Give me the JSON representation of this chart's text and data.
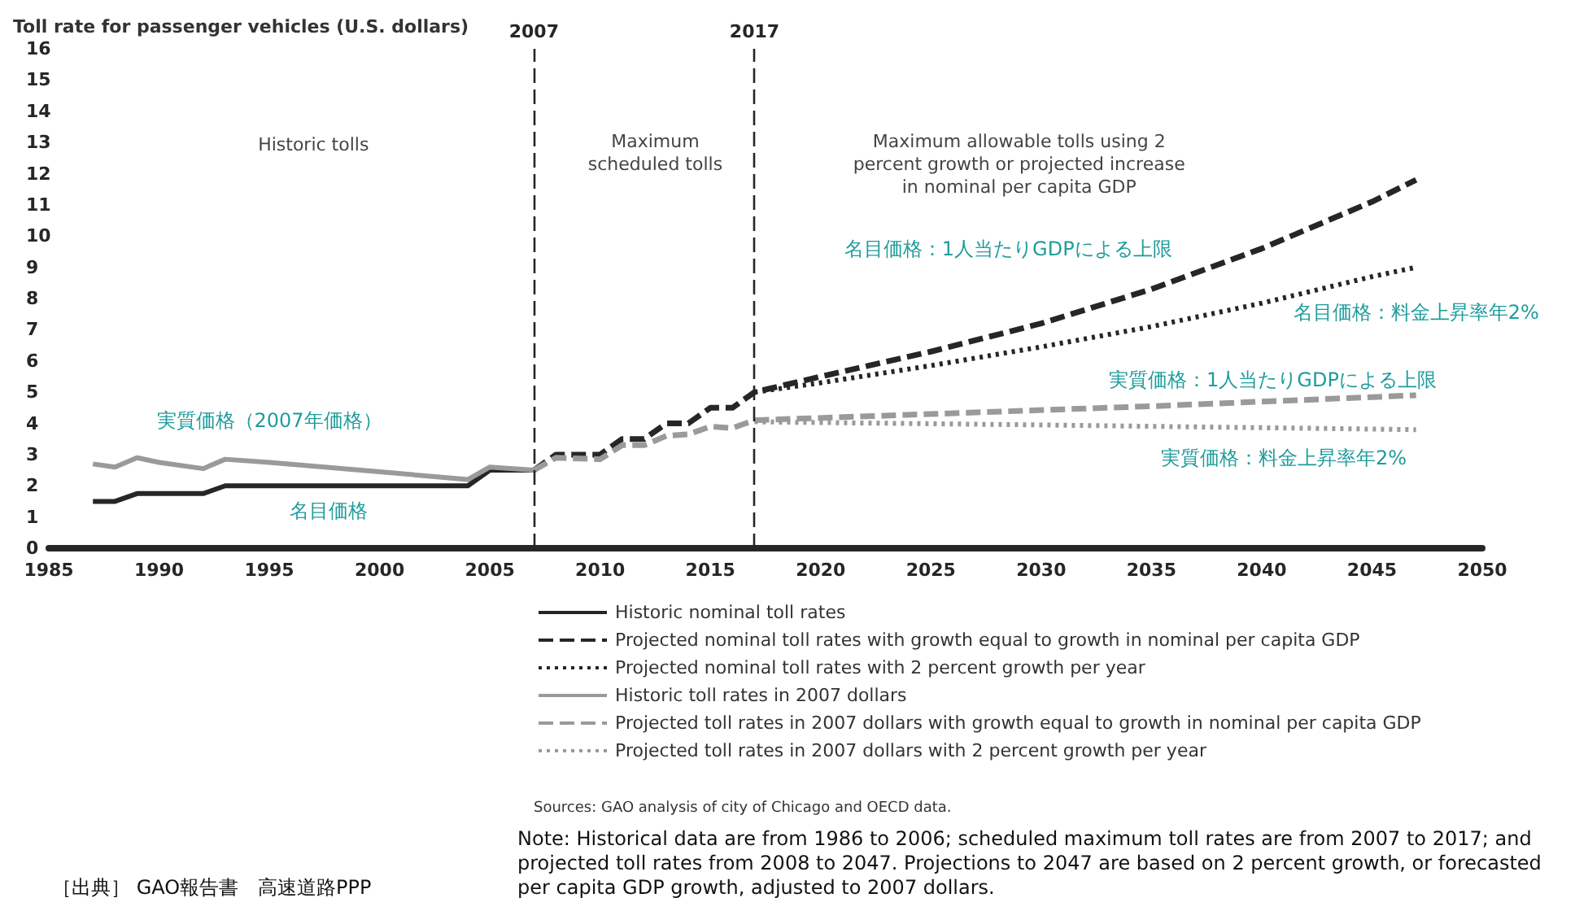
{
  "chart_data": {
    "type": "line",
    "ylabel": "Toll rate for passenger vehicles (U.S. dollars)",
    "xlim": [
      1985,
      2050
    ],
    "xticks": [
      1985,
      1990,
      1995,
      2000,
      2005,
      2010,
      2015,
      2020,
      2025,
      2030,
      2035,
      2040,
      2045,
      2050
    ],
    "ylim": [
      0,
      16
    ],
    "yticks": [
      0,
      1,
      2,
      3,
      4,
      5,
      6,
      7,
      8,
      9,
      10,
      11,
      12,
      13,
      14,
      15,
      16
    ],
    "grid": false,
    "legend": "bottom",
    "marker": "none",
    "series": [
      {
        "name": "Historic nominal toll rates",
        "color": "#262626",
        "line_style": "solid",
        "x": [
          1987,
          1988,
          1989,
          1990,
          1992,
          1993,
          2004,
          2005,
          2007
        ],
        "values": [
          1.5,
          1.5,
          1.75,
          1.75,
          1.75,
          2.0,
          2.0,
          2.5,
          2.5
        ]
      },
      {
        "name": "Projected nominal toll rates with growth equal to growth in nominal per capita GDP",
        "color": "#262626",
        "line_style": "dashed",
        "x": [
          2007,
          2008,
          2010,
          2011,
          2012,
          2013,
          2014,
          2015,
          2016,
          2017,
          2020,
          2025,
          2030,
          2035,
          2040,
          2045,
          2047
        ],
        "values": [
          2.5,
          3.0,
          3.0,
          3.5,
          3.5,
          4.0,
          4.0,
          4.5,
          4.5,
          5.0,
          5.5,
          6.3,
          7.2,
          8.3,
          9.6,
          11.1,
          11.8
        ]
      },
      {
        "name": "Projected nominal toll rates with 2 percent growth per year",
        "color": "#262626",
        "line_style": "dotted",
        "x": [
          2017,
          2020,
          2025,
          2030,
          2035,
          2040,
          2045,
          2047
        ],
        "values": [
          5.0,
          5.3,
          5.85,
          6.45,
          7.1,
          7.85,
          8.7,
          9.0
        ]
      },
      {
        "name": "Historic toll rates in 2007 dollars",
        "color": "#9a9a9a",
        "line_style": "solid",
        "x": [
          1987,
          1988,
          1989,
          1990,
          1992,
          1993,
          1995,
          2000,
          2004,
          2005,
          2007
        ],
        "values": [
          2.7,
          2.6,
          2.9,
          2.75,
          2.55,
          2.85,
          2.75,
          2.45,
          2.2,
          2.6,
          2.5
        ]
      },
      {
        "name": "Projected toll rates in 2007 dollars with growth equal to growth in nominal per capita GDP",
        "color": "#9a9a9a",
        "line_style": "dashed",
        "x": [
          2007,
          2008,
          2010,
          2011,
          2012,
          2013,
          2014,
          2015,
          2016,
          2017,
          2025,
          2035,
          2047
        ],
        "values": [
          2.5,
          2.9,
          2.85,
          3.3,
          3.3,
          3.6,
          3.65,
          3.9,
          3.85,
          4.1,
          4.3,
          4.55,
          4.9
        ]
      },
      {
        "name": "Projected toll rates in 2007 dollars with 2 percent growth per year",
        "color": "#9a9a9a",
        "line_style": "dotted",
        "x": [
          2017,
          2030,
          2047
        ],
        "values": [
          4.05,
          3.95,
          3.8
        ]
      }
    ],
    "ref_lines": [
      {
        "axis": "x",
        "value": 2007,
        "label": "2007",
        "color": "#262626",
        "line_style": "dashed"
      },
      {
        "axis": "x",
        "value": 2017,
        "label": "2017",
        "color": "#262626",
        "line_style": "dashed"
      }
    ],
    "annotations": [
      "Historic tolls",
      "Maximum\nscheduled tolls",
      "Maximum allowable tolls using 2\npercent growth or projected increase\nin nominal per capita GDP",
      "Sources: GAO analysis of city of Chicago and OECD data.",
      "Note: Historical data are from 1986 to 2006; scheduled maximum toll rates are from 2007 to 2017; and projected toll rates from 2008 to 2047. Projections to 2047 are based on 2 percent growth, or forecasted per capita GDP growth, adjusted to 2007 dollars.",
      "［出典］ GAO報告書　高速道路PPP",
      "実質価格（2007年価格）",
      "名目価格",
      "名目価格：1人当たりGDPによる上限",
      "名目価格：料金上昇率年2%",
      "実質価格：1人当たりGDPによる上限",
      "実質価格：料金上昇率年2%"
    ]
  }
}
